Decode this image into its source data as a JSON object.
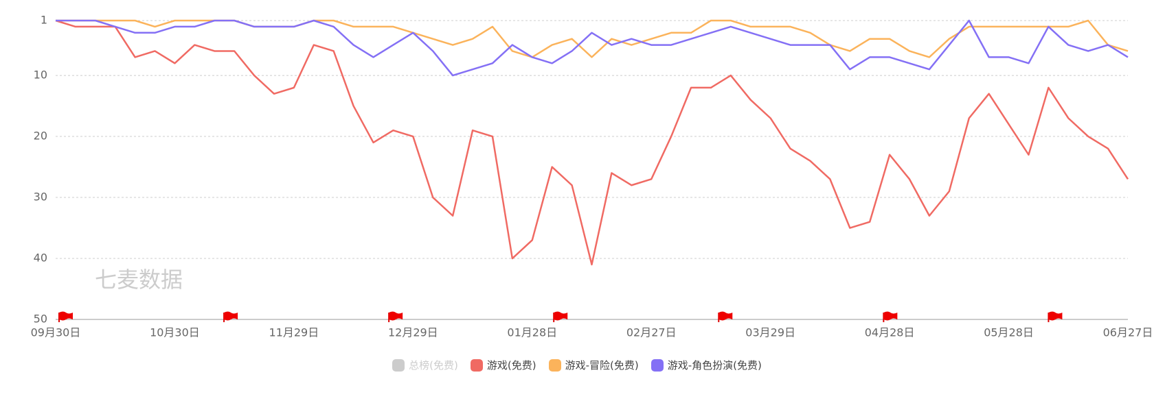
{
  "chart_data": {
    "type": "line",
    "watermark": "七麦数据",
    "categories": [
      "09月30日",
      null,
      null,
      null,
      null,
      null,
      "10月30日",
      null,
      null,
      null,
      null,
      null,
      "11月29日",
      null,
      null,
      null,
      null,
      null,
      "12月29日",
      null,
      null,
      null,
      null,
      null,
      "01月28日",
      null,
      null,
      null,
      null,
      null,
      "02月27日",
      null,
      null,
      null,
      null,
      null,
      "03月29日",
      null,
      null,
      null,
      null,
      null,
      "04月28日",
      null,
      null,
      null,
      null,
      null,
      "05月28日",
      null,
      null,
      null,
      null,
      null,
      "06月27日"
    ],
    "ylim": [
      1,
      50
    ],
    "y_reverse": true,
    "yticks": [
      1,
      10,
      20,
      30,
      40,
      50
    ],
    "grid": true,
    "series": [
      {
        "name": "总榜(免费)",
        "color": "#cccccc",
        "visible": false
      },
      {
        "name": "游戏(免费)",
        "color": "#f06a63",
        "values": [
          1,
          2,
          2,
          2,
          7,
          6,
          8,
          5,
          6,
          6,
          10,
          13,
          12,
          5,
          6,
          15,
          21,
          19,
          20,
          30,
          33,
          19,
          20,
          40,
          37,
          25,
          28,
          41,
          26,
          28,
          27,
          20,
          12,
          12,
          10,
          14,
          17,
          22,
          24,
          27,
          35,
          34,
          23,
          27,
          33,
          29,
          17,
          13,
          18,
          23,
          12,
          17,
          20,
          22,
          27
        ]
      },
      {
        "name": "游戏-冒险(免费)",
        "color": "#fbb35b",
        "values": [
          1,
          1,
          1,
          1,
          1,
          2,
          1,
          1,
          1,
          1,
          2,
          2,
          2,
          1,
          1,
          2,
          2,
          2,
          3,
          4,
          5,
          4,
          2,
          6,
          7,
          5,
          4,
          7,
          4,
          5,
          4,
          3,
          3,
          1,
          1,
          2,
          2,
          2,
          3,
          5,
          6,
          4,
          4,
          6,
          7,
          4,
          2,
          2,
          2,
          2,
          2,
          2,
          1,
          5,
          6
        ]
      },
      {
        "name": "游戏-角色扮演(免费)",
        "color": "#8470f5",
        "values": [
          1,
          1,
          1,
          2,
          3,
          3,
          2,
          2,
          1,
          1,
          2,
          2,
          2,
          1,
          2,
          5,
          7,
          5,
          3,
          6,
          10,
          9,
          8,
          5,
          7,
          8,
          6,
          3,
          5,
          4,
          5,
          5,
          4,
          3,
          2,
          3,
          4,
          5,
          5,
          5,
          9,
          7,
          7,
          8,
          9,
          5,
          1,
          7,
          7,
          8,
          2,
          5,
          6,
          5,
          7
        ]
      }
    ]
  }
}
